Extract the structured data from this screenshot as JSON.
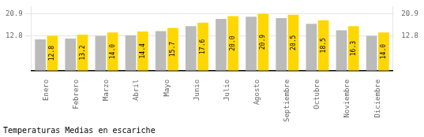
{
  "chart_data": {
    "type": "bar",
    "title": "Temperaturas Medias en escariche",
    "categories": [
      "Enero",
      "Febrero",
      "Marzo",
      "Abril",
      "Mayo",
      "Junio",
      "Julio",
      "Agosto",
      "Septiembre",
      "Octubre",
      "Noviembre",
      "Diciembre"
    ],
    "series": [
      {
        "color": "#BBBBBB",
        "values": [
          11.5,
          11.8,
          12.8,
          13.0,
          14.5,
          16.3,
          19.0,
          19.8,
          19.3,
          17.2,
          14.8,
          12.8
        ]
      },
      {
        "color": "#FFD700",
        "values": [
          12.8,
          13.2,
          14.0,
          14.4,
          15.7,
          17.6,
          20.0,
          20.9,
          20.5,
          18.5,
          16.3,
          14.0
        ],
        "data_labels": true,
        "value_labels": [
          "12.8",
          "13.2",
          "14.0",
          "14.4",
          "15.7",
          "17.6",
          "20.0",
          "20.9",
          "20.5",
          "18.5",
          "16.3",
          "14.0"
        ]
      }
    ],
    "ylim": [
      0.0,
      23.5
    ],
    "yticks": [
      12.8,
      20.9
    ],
    "y2lim": [
      0.0,
      23.5
    ],
    "y2ticks": [
      12.8,
      20.9
    ],
    "grid": true
  }
}
